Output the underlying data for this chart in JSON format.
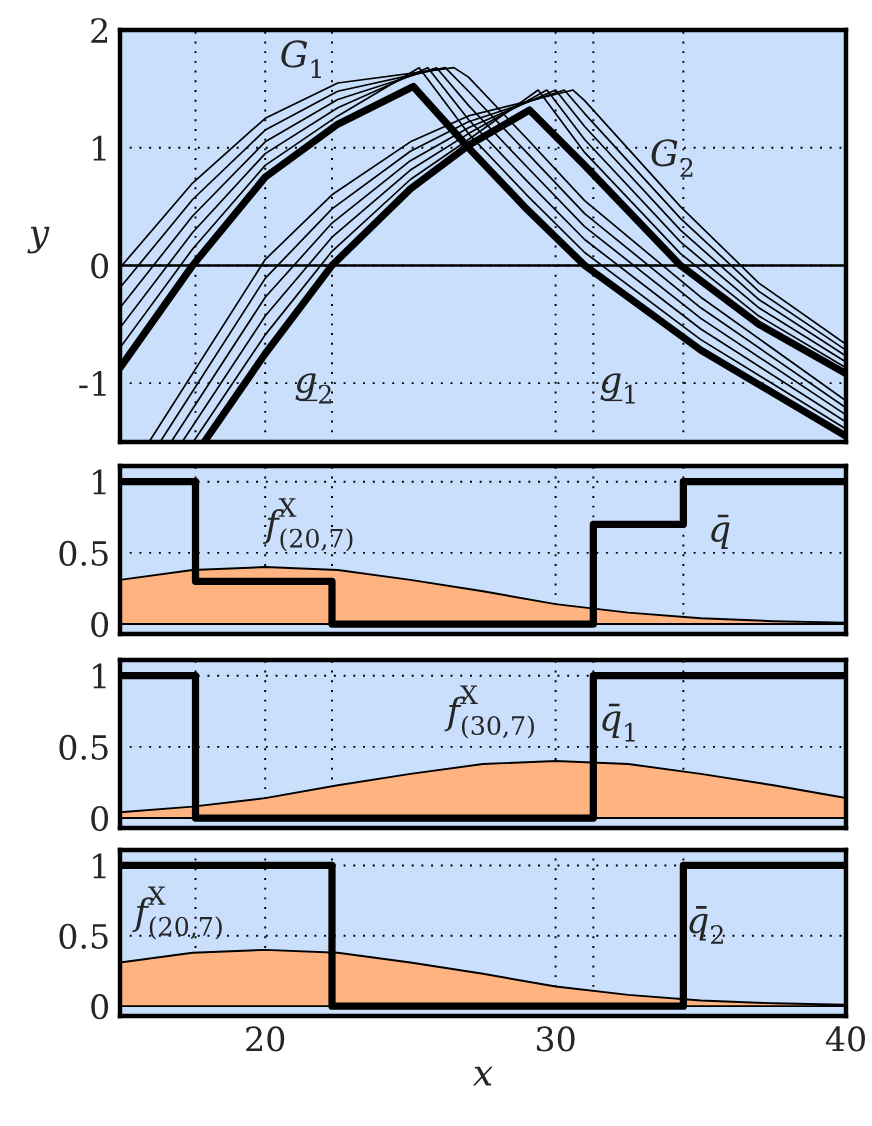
{
  "chart_data": [
    {
      "type": "line",
      "ylabel": "y",
      "xlim": [
        15,
        40
      ],
      "ylim": [
        -1.5,
        2
      ],
      "xticks": [
        {
          "value": 17.6,
          "label": null
        },
        20,
        {
          "value": 22.3,
          "label": null
        },
        30,
        {
          "value": 31.3,
          "label": null
        },
        {
          "value": 34.4,
          "label": null
        },
        40
      ],
      "yticks": [
        -1,
        0,
        1,
        2
      ],
      "grid": true,
      "tick_labels": "y",
      "ref_lines": [
        {
          "axis": "y",
          "value": 0,
          "color": "#000000"
        }
      ],
      "annotations": [
        "G$_{1}$",
        "G$_{2}$",
        "g̲$_{2}$",
        "g̲$_{1}$"
      ],
      "series": [
        {
          "color": "#000000",
          "x": [
            15,
            17.5,
            20,
            22.5,
            25.1,
            27,
            29,
            31,
            35,
            40
          ],
          "values": [
            -0.87,
            0,
            0.75,
            1.2,
            1.52,
            1.0,
            0.48,
            0,
            -0.72,
            -1.45
          ]
        },
        {
          "color": "#000000",
          "x": [
            15,
            17.5,
            20,
            22.5,
            25.3,
            27,
            29,
            31,
            35,
            40
          ],
          "values": [
            -0.7,
            0.14,
            0.85,
            1.27,
            1.68,
            1.12,
            0.6,
            0.11,
            -0.63,
            -1.39
          ]
        },
        {
          "color": "#000000",
          "x": [
            15,
            17.5,
            20,
            22.5,
            25.6,
            27,
            29,
            31,
            35,
            40
          ],
          "values": [
            -0.53,
            0.28,
            0.95,
            1.34,
            1.68,
            1.24,
            0.72,
            0.22,
            -0.54,
            -1.33
          ]
        },
        {
          "color": "#000000",
          "x": [
            15,
            17.5,
            20,
            22.5,
            25.9,
            27,
            29,
            31,
            35,
            40
          ],
          "values": [
            -0.36,
            0.42,
            1.05,
            1.41,
            1.68,
            1.36,
            0.84,
            0.33,
            -0.45,
            -1.27
          ]
        },
        {
          "color": "#000000",
          "x": [
            15,
            17.5,
            20,
            22.5,
            26.2,
            27,
            29,
            31,
            35,
            40
          ],
          "values": [
            -0.19,
            0.56,
            1.15,
            1.48,
            1.68,
            1.48,
            0.96,
            0.44,
            -0.36,
            -1.21
          ]
        },
        {
          "color": "#000000",
          "x": [
            15,
            17.5,
            20,
            22.5,
            26.5,
            27,
            29,
            31,
            35,
            40
          ],
          "values": [
            -0.02,
            0.7,
            1.25,
            1.55,
            1.68,
            1.6,
            1.08,
            0.55,
            -0.27,
            -1.15
          ]
        },
        {
          "color": "#000000",
          "x": [
            17.9,
            20,
            22.3,
            25,
            27,
            29.1,
            31,
            34.3,
            37,
            40
          ],
          "values": [
            -1.5,
            -0.75,
            0,
            0.65,
            1.02,
            1.32,
            0.85,
            0,
            -0.5,
            -0.92
          ]
        },
        {
          "color": "#000000",
          "x": [
            17.52,
            20,
            22.3,
            25,
            27,
            29.4,
            31,
            34.3,
            37,
            40
          ],
          "values": [
            -1.5,
            -0.59,
            0.12,
            0.73,
            1.07,
            1.49,
            0.96,
            0.1,
            -0.43,
            -0.87
          ]
        },
        {
          "color": "#000000",
          "x": [
            17.14,
            20,
            22.3,
            25,
            27,
            29.7,
            31,
            34.3,
            37,
            40
          ],
          "values": [
            -1.5,
            -0.43,
            0.24,
            0.81,
            1.12,
            1.49,
            1.07,
            0.2,
            -0.36,
            -0.82
          ]
        },
        {
          "color": "#000000",
          "x": [
            16.76,
            20,
            22.3,
            25,
            27,
            30.0,
            31,
            34.3,
            37,
            40
          ],
          "values": [
            -1.5,
            -0.27,
            0.36,
            0.89,
            1.17,
            1.49,
            1.18,
            0.3,
            -0.29,
            -0.77
          ]
        },
        {
          "color": "#000000",
          "x": [
            16.38,
            20,
            22.3,
            25,
            27,
            30.3,
            31,
            34.3,
            37,
            40
          ],
          "values": [
            -1.5,
            -0.11,
            0.48,
            0.97,
            1.22,
            1.49,
            1.29,
            0.4,
            -0.22,
            -0.72
          ]
        },
        {
          "color": "#000000",
          "x": [
            16.0,
            20,
            22.3,
            25,
            27,
            30.6,
            31,
            34.3,
            37,
            40
          ],
          "values": [
            -1.5,
            0.05,
            0.6,
            1.05,
            1.27,
            1.49,
            1.4,
            0.5,
            -0.15,
            -0.67
          ]
        }
      ]
    },
    {
      "type": "step",
      "xlim": [
        15,
        40
      ],
      "ylim": [
        -0.07,
        1.11
      ],
      "xticks": [
        {
          "value": 17.6,
          "label": null
        },
        20,
        {
          "value": 22.3,
          "label": null
        },
        30,
        {
          "value": 31.3,
          "label": null
        },
        {
          "value": 34.4,
          "label": null
        },
        40
      ],
      "yticks": [
        0,
        0.5,
        1
      ],
      "grid": true,
      "tick_labels": "y",
      "annotations": [
        "f$^{X}$$_{(20,7)}$",
        "q̄"
      ],
      "series": [
        {
          "type": "area",
          "color": "#ffb380",
          "x": [
            15,
            17.5,
            20,
            22.5,
            25,
            27.5,
            30,
            32.5,
            35,
            37.5,
            40
          ],
          "values": [
            0.31,
            0.38,
            0.4,
            0.38,
            0.31,
            0.23,
            0.14,
            0.08,
            0.04,
            0.02,
            0.01
          ]
        },
        {
          "type": "step",
          "color": "#000000",
          "x": [
            15,
            17.6,
            22.3,
            31.3,
            34.4,
            40
          ],
          "values": [
            1,
            0.3,
            0,
            0.7,
            1,
            1
          ]
        }
      ]
    },
    {
      "type": "step",
      "xlim": [
        15,
        40
      ],
      "ylim": [
        -0.07,
        1.11
      ],
      "xticks": [
        {
          "value": 17.6,
          "label": null
        },
        20,
        {
          "value": 22.3,
          "label": null
        },
        30,
        {
          "value": 31.3,
          "label": null
        },
        {
          "value": 34.4,
          "label": null
        },
        40
      ],
      "yticks": [
        0,
        0.5,
        1
      ],
      "grid": true,
      "tick_labels": "y",
      "annotations": [
        "f$^{X}$$_{(30,7)}$",
        "q̄$_{1}$"
      ],
      "series": [
        {
          "type": "area",
          "color": "#ffb380",
          "x": [
            15,
            17.5,
            20,
            22.5,
            25,
            27.5,
            30,
            32.5,
            35,
            37.5,
            40
          ],
          "values": [
            0.04,
            0.08,
            0.14,
            0.23,
            0.31,
            0.38,
            0.4,
            0.38,
            0.31,
            0.23,
            0.14
          ]
        },
        {
          "type": "step",
          "color": "#000000",
          "x": [
            15,
            17.6,
            31.3,
            40
          ],
          "values": [
            1,
            0,
            1,
            1
          ]
        }
      ]
    },
    {
      "type": "step",
      "xlabel": "x",
      "xlim": [
        15,
        40
      ],
      "ylim": [
        -0.07,
        1.11
      ],
      "xticks": [
        {
          "value": 17.6,
          "label": null
        },
        20,
        {
          "value": 22.3,
          "label": null
        },
        30,
        {
          "value": 31.3,
          "label": null
        },
        {
          "value": 34.4,
          "label": null
        },
        40
      ],
      "yticks": [
        0,
        0.5,
        1
      ],
      "grid": true,
      "annotations": [
        "f$^{X}$$_{(20,7)}$",
        "q̄$_{2}$"
      ],
      "series": [
        {
          "type": "area",
          "color": "#ffb380",
          "x": [
            15,
            17.5,
            20,
            22.5,
            25,
            27.5,
            30,
            32.5,
            35,
            37.5,
            40
          ],
          "values": [
            0.31,
            0.38,
            0.4,
            0.38,
            0.31,
            0.23,
            0.14,
            0.08,
            0.04,
            0.02,
            0.01
          ]
        },
        {
          "type": "step",
          "color": "#000000",
          "x": [
            15,
            22.3,
            34.4,
            40
          ],
          "values": [
            1,
            0,
            1,
            1
          ]
        }
      ]
    }
  ]
}
